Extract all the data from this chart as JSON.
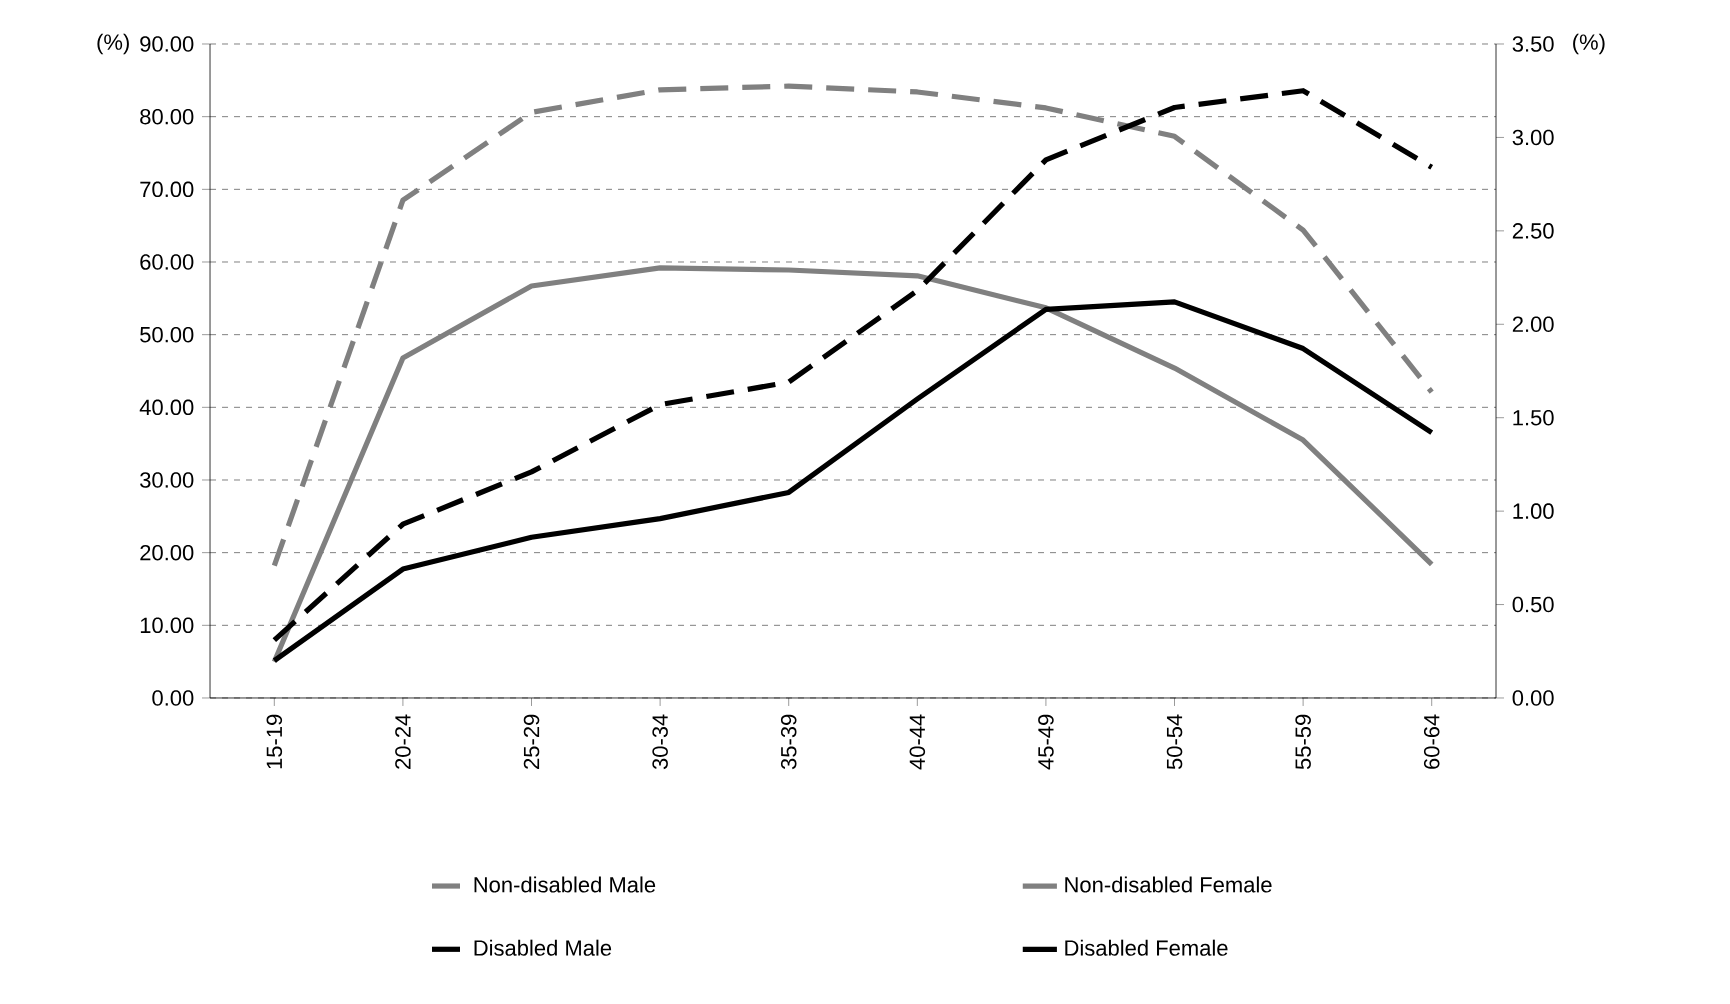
{
  "chart_data": {
    "type": "line",
    "categories": [
      "15-19",
      "20-24",
      "25-29",
      "30-34",
      "35-39",
      "40-44",
      "45-49",
      "50-54",
      "55-59",
      "60-64"
    ],
    "ylabel": "(%)",
    "y2label": "(%)",
    "ylim": [
      0,
      90
    ],
    "yticks": [
      {
        "value": 0,
        "label": "0.00"
      },
      {
        "value": 10,
        "label": "10.00"
      },
      {
        "value": 20,
        "label": "20.00"
      },
      {
        "value": 30,
        "label": "30.00"
      },
      {
        "value": 40,
        "label": "40.00"
      },
      {
        "value": 50,
        "label": "50.00"
      },
      {
        "value": 60,
        "label": "60.00"
      },
      {
        "value": 70,
        "label": "70.00"
      },
      {
        "value": 80,
        "label": "80.00"
      },
      {
        "value": 90,
        "label": "90.00"
      }
    ],
    "y2lim": [
      0,
      3.5
    ],
    "y2ticks": [
      {
        "value": 0,
        "label": "0.00"
      },
      {
        "value": 0.5,
        "label": "0.50"
      },
      {
        "value": 1,
        "label": "1.00"
      },
      {
        "value": 1.5,
        "label": "1.50"
      },
      {
        "value": 2,
        "label": "2.00"
      },
      {
        "value": 2.5,
        "label": "2.50"
      },
      {
        "value": 3,
        "label": "3.00"
      },
      {
        "value": 3.5,
        "label": "3.50"
      }
    ],
    "grid": "y",
    "legend": "bottom",
    "marker": "none",
    "series": [
      {
        "name": "Non-disabled Male",
        "color": "#808080",
        "line_style": "dashed",
        "values": [
          18.2,
          68.5,
          80.6,
          83.7,
          84.2,
          83.4,
          81.2,
          77.3,
          64.4,
          42.1
        ]
      },
      {
        "name": "Non-disabled Female",
        "color": "#808080",
        "line_style": "solid",
        "values": [
          5.0,
          46.8,
          56.7,
          59.2,
          58.9,
          58.1,
          53.7,
          45.4,
          35.5,
          18.4
        ]
      },
      {
        "name": "Disabled Male",
        "color": "#000000",
        "line_style": "dashed",
        "axis": "y2",
        "values": [
          0.31,
          0.93,
          1.21,
          1.57,
          1.69,
          2.18,
          2.88,
          3.16,
          3.25,
          2.84
        ]
      },
      {
        "name": "Disabled Female",
        "color": "#000000",
        "line_style": "solid",
        "axis": "y2",
        "values": [
          0.2,
          0.69,
          0.86,
          0.96,
          1.1,
          1.6,
          2.08,
          2.12,
          1.87,
          1.42
        ]
      }
    ]
  }
}
